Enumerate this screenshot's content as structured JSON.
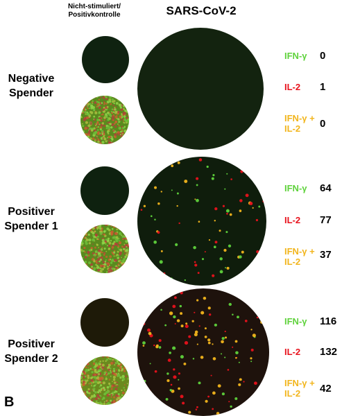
{
  "header": {
    "control_title_line1": "Nicht-stimuliert/",
    "control_title_line2": "Positivkontrolle",
    "stim_title": "SARS-CoV-2"
  },
  "panel_letter": "B",
  "colors": {
    "ifn": "#5fd23c",
    "il2": "#e8121c",
    "double": "#f2b51c"
  },
  "donors": [
    {
      "label_line1": "Negative",
      "label_line2": "Spender",
      "rows": [
        {
          "marker": "IFN-γ",
          "marker_line2": "",
          "count": "0",
          "type": "ifn"
        },
        {
          "marker": "IL-2",
          "marker_line2": "",
          "count": "1",
          "type": "il2"
        },
        {
          "marker": "IFN-γ +",
          "marker_line2": "IL-2",
          "count": "0",
          "type": "double"
        }
      ]
    },
    {
      "label_line1": "Positiver",
      "label_line2": "Spender 1",
      "rows": [
        {
          "marker": "IFN-γ",
          "marker_line2": "",
          "count": "64",
          "type": "ifn"
        },
        {
          "marker": "IL-2",
          "marker_line2": "",
          "count": "77",
          "type": "il2"
        },
        {
          "marker": "IFN-γ +",
          "marker_line2": "IL-2",
          "count": "37",
          "type": "double"
        }
      ]
    },
    {
      "label_line1": "Positiver",
      "label_line2": "Spender 2",
      "rows": [
        {
          "marker": "IFN-γ",
          "marker_line2": "",
          "count": "116",
          "type": "ifn"
        },
        {
          "marker": "IL-2",
          "marker_line2": "",
          "count": "132",
          "type": "il2"
        },
        {
          "marker": "IFN-γ +",
          "marker_line2": "IL-2",
          "count": "42",
          "type": "double"
        }
      ]
    }
  ]
}
